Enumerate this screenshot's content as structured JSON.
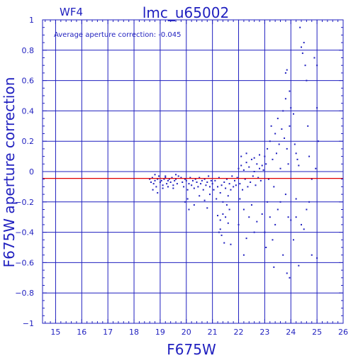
{
  "chart_data": {
    "type": "scatter",
    "panel_label": "WF4",
    "title": "lmc_u65002",
    "annotation": "Average aperture correction: -0.045",
    "xlabel": "F675W",
    "ylabel": "F675W aperture correction",
    "xlim": [
      14.5,
      26
    ],
    "ylim": [
      -1,
      1
    ],
    "x_ticks": [
      15,
      16,
      17,
      18,
      19,
      20,
      21,
      22,
      23,
      24,
      25,
      26
    ],
    "y_ticks": [
      -1,
      -0.8,
      -0.6,
      -0.4,
      -0.2,
      0,
      0.2,
      0.4,
      0.6,
      0.8,
      1
    ],
    "y_tick_labels": [
      "−1",
      "−0.8",
      "−0.6",
      "−0.4",
      "−0.2",
      "0",
      "0.2",
      "0.4",
      "0.6",
      "0.8",
      "1"
    ],
    "grid": true,
    "reference_line": -0.045,
    "colors": {
      "axes": "#1f1fbf",
      "points": "#1f1fbf",
      "reference_line": "#e00000"
    },
    "points": [
      [
        18.6,
        -0.05
      ],
      [
        18.65,
        -0.07
      ],
      [
        18.7,
        -0.04
      ],
      [
        18.75,
        -0.08
      ],
      [
        18.8,
        -0.06
      ],
      [
        18.85,
        -0.1
      ],
      [
        18.9,
        -0.05
      ],
      [
        18.95,
        -0.03
      ],
      [
        19.0,
        -0.07
      ],
      [
        19.05,
        -0.06
      ],
      [
        19.1,
        -0.09
      ],
      [
        19.15,
        -0.05
      ],
      [
        19.2,
        -0.04
      ],
      [
        19.25,
        -0.08
      ],
      [
        19.3,
        -0.06
      ],
      [
        19.35,
        -0.05
      ],
      [
        19.4,
        -0.07
      ],
      [
        19.45,
        -0.04
      ],
      [
        19.5,
        -0.09
      ],
      [
        19.55,
        -0.06
      ],
      [
        19.6,
        -0.05
      ],
      [
        19.65,
        -0.08
      ],
      [
        19.7,
        -0.03
      ],
      [
        18.72,
        -0.12
      ],
      [
        18.9,
        -0.14
      ],
      [
        19.1,
        -0.11
      ],
      [
        19.3,
        -0.1
      ],
      [
        19.5,
        -0.11
      ],
      [
        18.8,
        -0.02
      ],
      [
        19.2,
        -0.03
      ],
      [
        19.6,
        -0.02
      ],
      [
        19.8,
        -0.04
      ],
      [
        19.85,
        -0.07
      ],
      [
        19.9,
        -0.1
      ],
      [
        19.95,
        -0.05
      ],
      [
        20.0,
        -0.06
      ],
      [
        20.05,
        -0.12
      ],
      [
        20.1,
        -0.08
      ],
      [
        20.15,
        -0.04
      ],
      [
        20.2,
        -0.09
      ],
      [
        20.25,
        -0.06
      ],
      [
        20.3,
        -0.11
      ],
      [
        20.35,
        -0.05
      ],
      [
        20.4,
        -0.07
      ],
      [
        20.45,
        -0.1
      ],
      [
        20.5,
        -0.04
      ],
      [
        20.55,
        -0.08
      ],
      [
        20.6,
        -0.06
      ],
      [
        20.65,
        -0.12
      ],
      [
        20.7,
        -0.05
      ],
      [
        20.75,
        -0.09
      ],
      [
        20.8,
        -0.07
      ],
      [
        20.85,
        -0.03
      ],
      [
        20.9,
        -0.1
      ],
      [
        20.95,
        -0.06
      ],
      [
        19.95,
        -0.2
      ],
      [
        20.05,
        -0.18
      ],
      [
        20.3,
        -0.22
      ],
      [
        20.5,
        -0.16
      ],
      [
        20.7,
        -0.19
      ],
      [
        20.9,
        -0.15
      ],
      [
        20.1,
        -0.25
      ],
      [
        20.8,
        -0.24
      ],
      [
        21.0,
        -0.08
      ],
      [
        21.05,
        -0.12
      ],
      [
        21.1,
        -0.06
      ],
      [
        21.15,
        -0.18
      ],
      [
        21.2,
        -0.1
      ],
      [
        21.25,
        -0.04
      ],
      [
        21.3,
        -0.14
      ],
      [
        21.35,
        -0.09
      ],
      [
        21.4,
        -0.2
      ],
      [
        21.45,
        -0.07
      ],
      [
        21.5,
        -0.11
      ],
      [
        21.55,
        -0.05
      ],
      [
        21.6,
        -0.16
      ],
      [
        21.65,
        -0.08
      ],
      [
        21.7,
        -0.12
      ],
      [
        21.75,
        -0.03
      ],
      [
        21.8,
        -0.1
      ],
      [
        21.85,
        -0.06
      ],
      [
        21.9,
        -0.09
      ],
      [
        21.95,
        -0.04
      ],
      [
        21.2,
        -0.29
      ],
      [
        21.3,
        -0.32
      ],
      [
        21.4,
        -0.28
      ],
      [
        21.5,
        -0.3
      ],
      [
        21.6,
        -0.34
      ],
      [
        21.25,
        -0.4
      ],
      [
        21.35,
        -0.42
      ],
      [
        21.45,
        -0.47
      ],
      [
        21.7,
        -0.48
      ],
      [
        21.3,
        -0.38
      ],
      [
        21.55,
        -0.22
      ],
      [
        21.65,
        -0.25
      ],
      [
        22.0,
        0.02
      ],
      [
        22.05,
        -0.08
      ],
      [
        22.1,
        0.04
      ],
      [
        22.15,
        -0.12
      ],
      [
        22.2,
        0.01
      ],
      [
        22.25,
        -0.05
      ],
      [
        22.3,
        0.06
      ],
      [
        22.35,
        -0.1
      ],
      [
        22.4,
        0.03
      ],
      [
        22.45,
        -0.07
      ],
      [
        22.5,
        0.08
      ],
      [
        22.55,
        -0.03
      ],
      [
        22.6,
        0.0
      ],
      [
        22.65,
        -0.09
      ],
      [
        22.7,
        0.05
      ],
      [
        22.75,
        -0.04
      ],
      [
        22.8,
        0.02
      ],
      [
        22.85,
        -0.06
      ],
      [
        22.9,
        0.04
      ],
      [
        22.95,
        0.01
      ],
      [
        22.1,
        0.1
      ],
      [
        22.3,
        0.12
      ],
      [
        22.6,
        0.09
      ],
      [
        22.8,
        0.11
      ],
      [
        22.05,
        -0.18
      ],
      [
        22.2,
        -0.25
      ],
      [
        22.4,
        -0.3
      ],
      [
        22.5,
        -0.22
      ],
      [
        22.7,
        -0.33
      ],
      [
        22.9,
        -0.28
      ],
      [
        22.3,
        -0.44
      ],
      [
        22.6,
        -0.4
      ],
      [
        22.2,
        -0.55
      ],
      [
        22.0,
        -0.35
      ],
      [
        23.0,
        0.1
      ],
      [
        23.05,
        0.05
      ],
      [
        23.1,
        0.15
      ],
      [
        23.15,
        -0.05
      ],
      [
        23.2,
        0.2
      ],
      [
        23.25,
        0.3
      ],
      [
        23.3,
        0.08
      ],
      [
        23.35,
        -0.1
      ],
      [
        23.4,
        0.25
      ],
      [
        23.45,
        0.12
      ],
      [
        23.5,
        0.35
      ],
      [
        23.55,
        0.18
      ],
      [
        23.6,
        0.02
      ],
      [
        23.65,
        0.28
      ],
      [
        23.7,
        0.4
      ],
      [
        23.75,
        0.22
      ],
      [
        23.8,
        0.48
      ],
      [
        23.85,
        0.15
      ],
      [
        23.9,
        0.05
      ],
      [
        23.95,
        0.3
      ],
      [
        23.1,
        -0.2
      ],
      [
        23.2,
        -0.3
      ],
      [
        23.3,
        -0.45
      ],
      [
        23.4,
        -0.35
      ],
      [
        23.5,
        -0.25
      ],
      [
        23.6,
        -0.2
      ],
      [
        23.7,
        -0.55
      ],
      [
        23.8,
        -0.15
      ],
      [
        23.9,
        -0.3
      ],
      [
        23.0,
        -0.4
      ],
      [
        23.05,
        -0.5
      ],
      [
        23.35,
        -0.63
      ],
      [
        23.85,
        -0.67
      ],
      [
        23.95,
        -0.7
      ],
      [
        23.8,
        0.65
      ],
      [
        23.85,
        0.67
      ],
      [
        23.95,
        0.53
      ],
      [
        24.0,
        0.42
      ],
      [
        24.1,
        0.38
      ],
      [
        24.15,
        0.18
      ],
      [
        24.2,
        0.12
      ],
      [
        24.25,
        0.08
      ],
      [
        24.3,
        0.04
      ],
      [
        24.35,
        0.95
      ],
      [
        24.4,
        0.82
      ],
      [
        24.45,
        0.78
      ],
      [
        24.5,
        0.85
      ],
      [
        24.55,
        0.7
      ],
      [
        24.6,
        0.6
      ],
      [
        24.65,
        0.3
      ],
      [
        24.7,
        0.1
      ],
      [
        24.8,
        -0.05
      ],
      [
        24.9,
        0.75
      ],
      [
        25.0,
        0.42
      ],
      [
        25.05,
        0.2
      ],
      [
        24.2,
        -0.3
      ],
      [
        24.4,
        -0.35
      ],
      [
        24.1,
        -0.45
      ],
      [
        24.5,
        -0.38
      ],
      [
        24.6,
        -0.25
      ],
      [
        24.8,
        -0.55
      ],
      [
        25.0,
        -0.57
      ],
      [
        24.3,
        -0.62
      ],
      [
        24.0,
        -0.32
      ],
      [
        24.2,
        -0.18
      ],
      [
        24.7,
        -0.2
      ],
      [
        25.0,
        0.7
      ],
      [
        24.95,
        0.02
      ]
    ]
  }
}
